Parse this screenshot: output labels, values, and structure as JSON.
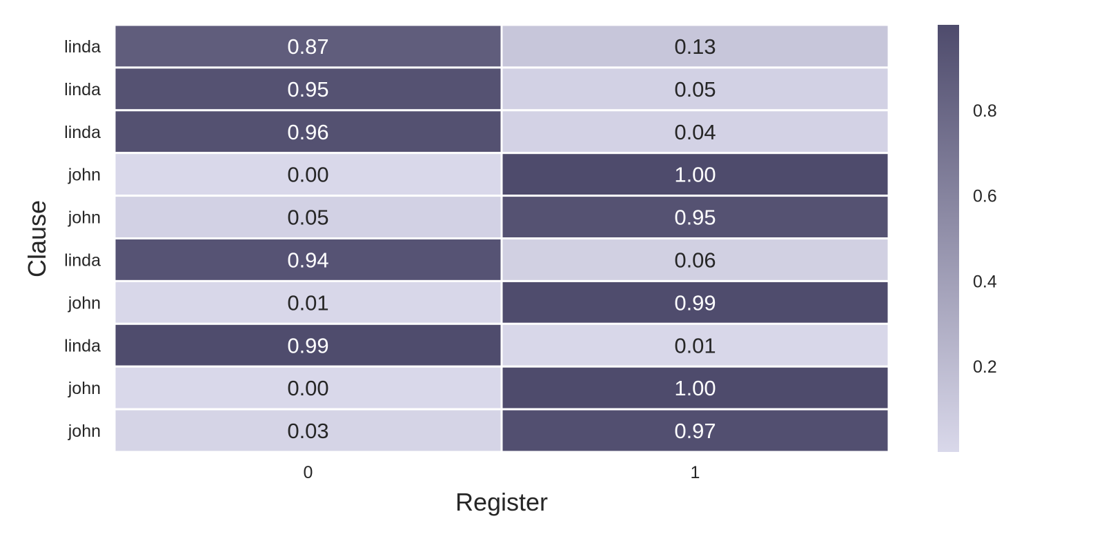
{
  "chart_data": {
    "type": "heatmap",
    "title": "",
    "xlabel": "Register",
    "ylabel": "Clause",
    "x_categories": [
      "0",
      "1"
    ],
    "y_categories": [
      "linda",
      "linda",
      "linda",
      "john",
      "john",
      "linda",
      "john",
      "linda",
      "john",
      "john"
    ],
    "values": [
      [
        0.87,
        0.13
      ],
      [
        0.95,
        0.05
      ],
      [
        0.96,
        0.04
      ],
      [
        0.0,
        1.0
      ],
      [
        0.05,
        0.95
      ],
      [
        0.94,
        0.06
      ],
      [
        0.01,
        0.99
      ],
      [
        0.99,
        0.01
      ],
      [
        0.0,
        1.0
      ],
      [
        0.03,
        0.97
      ]
    ],
    "value_format": "2 decimals",
    "annotations": true,
    "colorbar": {
      "ticks": [
        0.2,
        0.4,
        0.6,
        0.8
      ],
      "range": [
        0.0,
        1.0
      ],
      "low_color": "#d9d8ea",
      "high_color": "#4e4b6c"
    },
    "grid": false,
    "legend": "colorbar-right"
  }
}
